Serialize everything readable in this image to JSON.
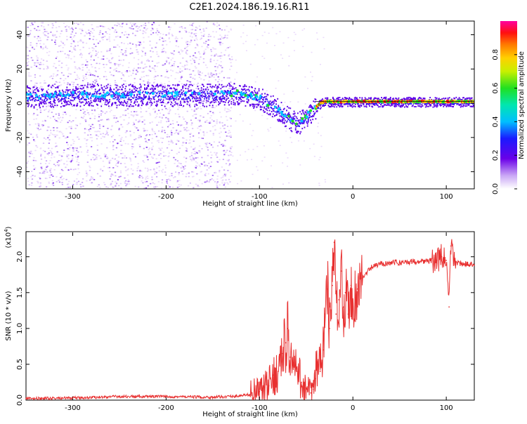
{
  "title": "C2E1.2024.186.19.16.R11",
  "colors": {
    "background": "#ffffff",
    "snr_line": "#e83030",
    "spectrum_center": "#5c00e8"
  },
  "chart_data": [
    {
      "type": "heatmap",
      "name": "spectrogram",
      "xlabel": "Height of straight line (km)",
      "ylabel": "Frequency (Hz)",
      "xlim": [
        -350,
        130
      ],
      "ylim": [
        -50,
        48
      ],
      "xticks": [
        "-300",
        "-200",
        "-100",
        "0",
        "100"
      ],
      "yticks": [
        "-40",
        "-20",
        "0",
        "20",
        "40"
      ],
      "colorbar": {
        "label": "Normalized spectral amplitude",
        "range": [
          0,
          1
        ],
        "ticks": [
          "0.0",
          "0.2",
          "0.4",
          "0.6",
          "0.8"
        ],
        "colormap": "rainbow (white-violet-blue-cyan-green-yellow-orange-red-magenta)"
      },
      "ridge_centre_line": {
        "x": [
          -350,
          -300,
          -250,
          -200,
          -150,
          -120,
          -100,
          -85,
          -70,
          -60,
          -50,
          -45,
          -40,
          -35,
          -30,
          -20,
          0,
          50,
          80,
          100,
          130
        ],
        "y": [
          4,
          5,
          5,
          5,
          5,
          6,
          3,
          -2,
          -8,
          -12,
          -8,
          -5,
          -3,
          0,
          1,
          1,
          1,
          1,
          1,
          1,
          1
        ]
      },
      "noise_region_x": [
        -350,
        -130
      ]
    },
    {
      "type": "line",
      "name": "snr",
      "xlabel": "Height of straight line (km)",
      "ylabel": "SNR (10 * v/v)",
      "y_multiplier": "(x10",
      "y_multiplier_exp": "4",
      "xlim": [
        -350,
        130
      ],
      "ylim": [
        0,
        2.35
      ],
      "xticks": [
        "-300",
        "-200",
        "-100",
        "0",
        "100"
      ],
      "yticks": [
        "0.0",
        "0.5",
        "1.0",
        "1.5",
        "2.0"
      ],
      "series": [
        {
          "x": [
            -350,
            -300,
            -250,
            -200,
            -150,
            -120,
            -110,
            -100,
            -90,
            -85,
            -80,
            -75,
            -72,
            -70,
            -67,
            -65,
            -60,
            -55,
            -50,
            -45,
            -42,
            -40,
            -38,
            -35,
            -32,
            -30,
            -27,
            -25,
            -22,
            -20,
            -18,
            -15,
            -12,
            -10,
            -8,
            -5,
            -2,
            0,
            5,
            10,
            15,
            20,
            25,
            30,
            40,
            50,
            60,
            70,
            80,
            90,
            95,
            100,
            103,
            105,
            110,
            120,
            130
          ],
          "y": [
            0.02,
            0.03,
            0.05,
            0.05,
            0.04,
            0.06,
            0.08,
            0.12,
            0.2,
            0.35,
            0.4,
            0.65,
            0.8,
            1.0,
            0.6,
            0.5,
            0.4,
            0.25,
            0.15,
            0.1,
            0.15,
            0.3,
            0.5,
            0.4,
            0.7,
            1.2,
            1.55,
            1.0,
            1.6,
            2.2,
            1.2,
            1.4,
            1.8,
            1.3,
            1.5,
            1.2,
            1.6,
            1.35,
            1.55,
            1.7,
            1.78,
            1.85,
            1.88,
            1.9,
            1.92,
            1.92,
            1.93,
            1.94,
            1.94,
            1.95,
            2.0,
            1.95,
            1.3,
            2.15,
            1.92,
            1.9,
            1.88
          ]
        }
      ]
    }
  ]
}
